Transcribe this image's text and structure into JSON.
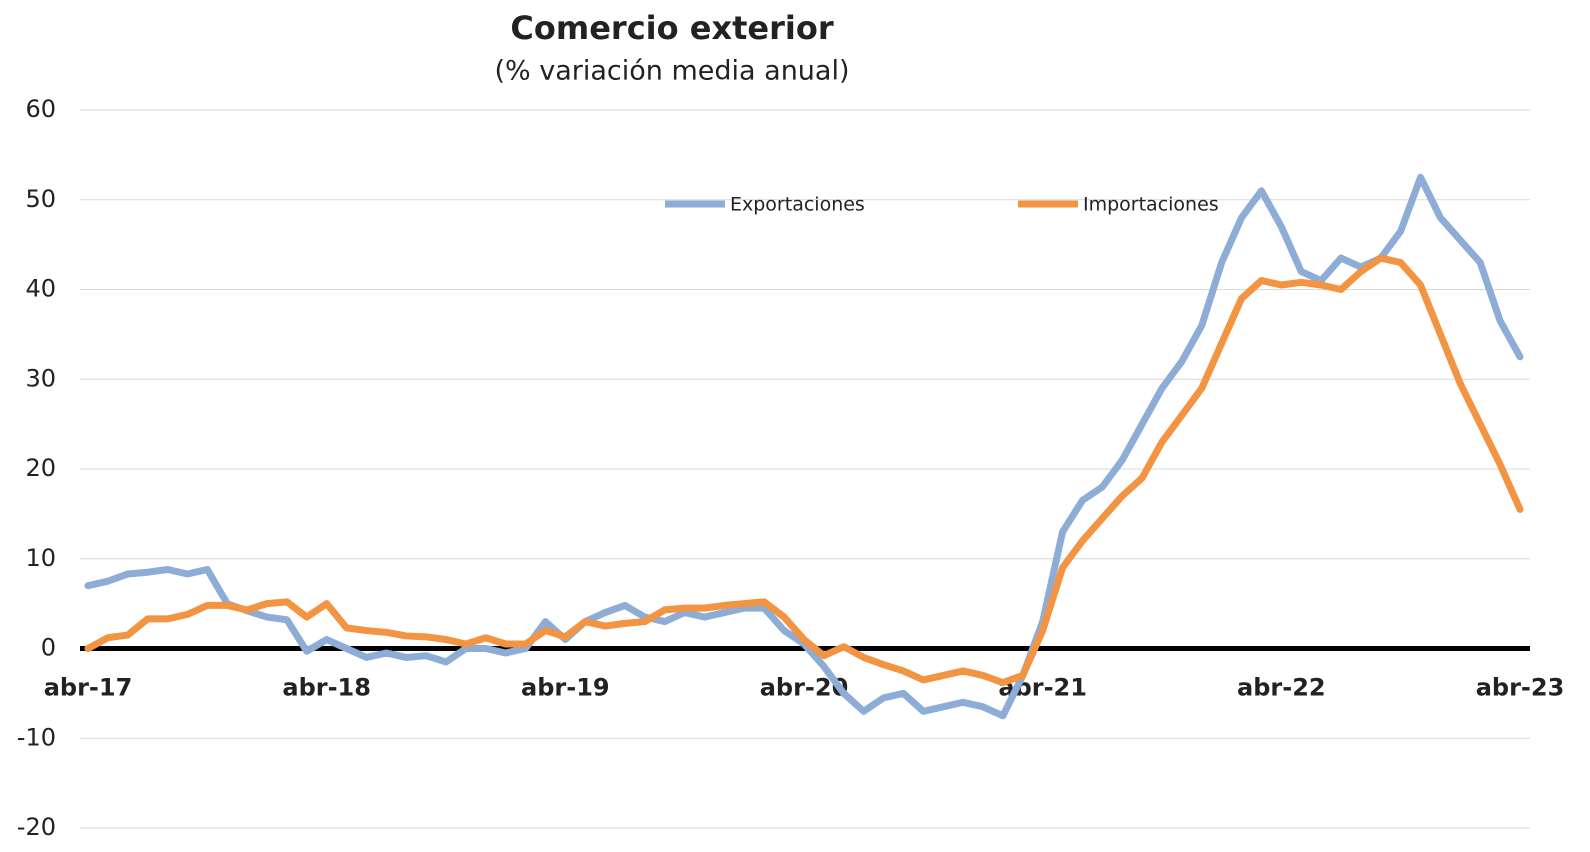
{
  "chart_data": {
    "type": "line",
    "title": "Comercio exterior",
    "subtitle": "(% variación media anual)",
    "categories": [
      "abr-17",
      null,
      null,
      null,
      null,
      null,
      null,
      null,
      null,
      null,
      null,
      null,
      "abr-18",
      null,
      null,
      null,
      null,
      null,
      null,
      null,
      null,
      null,
      null,
      null,
      "abr-19",
      null,
      null,
      null,
      null,
      null,
      null,
      null,
      null,
      null,
      null,
      null,
      "abr-20",
      null,
      null,
      null,
      null,
      null,
      null,
      null,
      null,
      null,
      null,
      null,
      "abr-21",
      null,
      null,
      null,
      null,
      null,
      null,
      null,
      null,
      null,
      null,
      null,
      "abr-22",
      null,
      null,
      null,
      null,
      null,
      null,
      null,
      null,
      null,
      null,
      null,
      "abr-23"
    ],
    "series": [
      {
        "name": "Exportaciones",
        "color": "#8eadd6",
        "values": [
          7,
          7.5,
          8.3,
          8.5,
          8.8,
          8.3,
          8.8,
          5,
          4.2,
          3.5,
          3.2,
          -0.3,
          1,
          0,
          -1,
          -0.5,
          -1,
          -0.8,
          -1.5,
          0,
          0,
          -0.5,
          0,
          3,
          1,
          3,
          4,
          4.8,
          3.5,
          3,
          4,
          3.5,
          4,
          4.5,
          4.5,
          2,
          0.5,
          -2,
          -5,
          -7,
          -5.5,
          -5,
          -7,
          -6.5,
          -6,
          -6.5,
          -7.5,
          -3,
          3,
          13,
          16.5,
          18,
          21,
          25,
          29,
          32,
          36,
          43,
          48,
          51,
          47,
          42,
          41,
          43.5,
          42.5,
          43.5,
          46.5,
          52.5,
          48,
          45.5,
          43,
          36.5,
          32.5
        ]
      },
      {
        "name": "Importaciones",
        "color": "#f29442",
        "values": [
          0,
          1.2,
          1.5,
          3.3,
          3.3,
          3.8,
          4.8,
          4.8,
          4.3,
          5,
          5.2,
          3.5,
          5,
          2.3,
          2,
          1.8,
          1.4,
          1.3,
          1,
          0.5,
          1.2,
          0.5,
          0.5,
          2,
          1.3,
          3,
          2.5,
          2.8,
          3,
          4.3,
          4.5,
          4.5,
          4.8,
          5,
          5.2,
          3.5,
          1,
          -0.8,
          0.2,
          -1,
          -1.8,
          -2.5,
          -3.5,
          -3,
          -2.5,
          -3,
          -3.8,
          -3,
          2,
          9,
          12,
          14.5,
          17,
          19,
          23,
          26,
          29,
          34,
          39,
          41,
          40.5,
          40.8,
          40.5,
          40,
          42,
          43.5,
          43,
          40.5,
          35,
          29.5,
          25,
          20.5,
          15.5
        ]
      }
    ],
    "ylim": [
      -20,
      60
    ],
    "yticks": [
      -20,
      -10,
      0,
      10,
      20,
      30,
      40,
      50,
      60
    ],
    "grid": true
  }
}
